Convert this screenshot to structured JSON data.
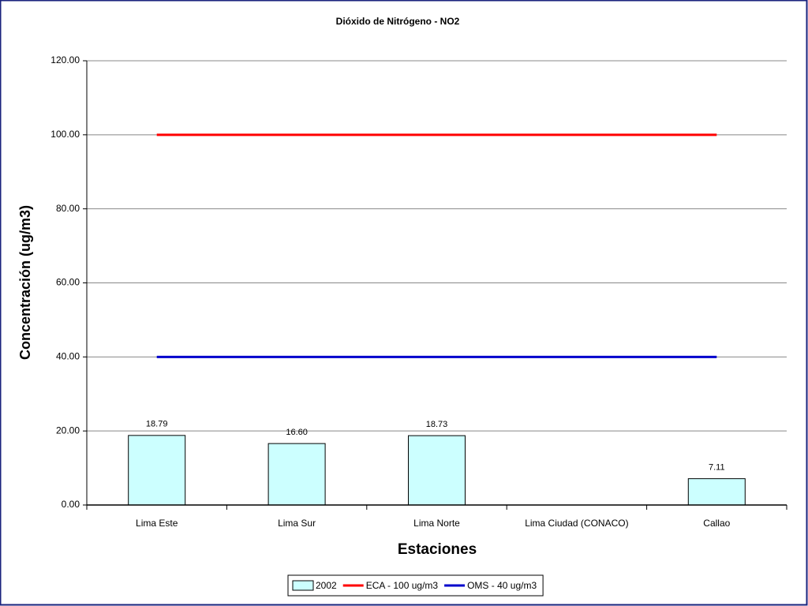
{
  "chart_data": {
    "type": "bar",
    "title": "Dióxido de Nitrógeno - NO2",
    "x_label": "Estaciones",
    "y_label": "Concentración (ug/m3)",
    "categories": [
      "Lima Este",
      "Lima Sur",
      "Lima Norte",
      "Lima Ciudad (CONACO)",
      "Callao"
    ],
    "series": [
      {
        "name": "2002",
        "type": "bar",
        "color": "#ccffff",
        "values": [
          18.79,
          16.6,
          18.73,
          null,
          7.11
        ],
        "value_labels": [
          "18.79",
          "16.60",
          "18.73",
          null,
          "7.11"
        ]
      },
      {
        "name": "ECA - 100 ug/m3",
        "type": "line",
        "color": "#ff0000",
        "values": [
          100,
          100,
          100,
          100,
          100
        ]
      },
      {
        "name": "OMS - 40 ug/m3",
        "type": "line",
        "color": "#0000cc",
        "values": [
          40,
          40,
          40,
          40,
          40
        ]
      }
    ],
    "ylim": [
      0,
      120
    ],
    "yticks": [
      {
        "value": 0,
        "label": "0.00"
      },
      {
        "value": 20,
        "label": "20.00"
      },
      {
        "value": 40,
        "label": "40.00"
      },
      {
        "value": 60,
        "label": "60.00"
      },
      {
        "value": 80,
        "label": "80.00"
      },
      {
        "value": 100,
        "label": "100.00"
      },
      {
        "value": 120,
        "label": "120.00"
      }
    ],
    "grid": true,
    "legend": "bottom"
  }
}
